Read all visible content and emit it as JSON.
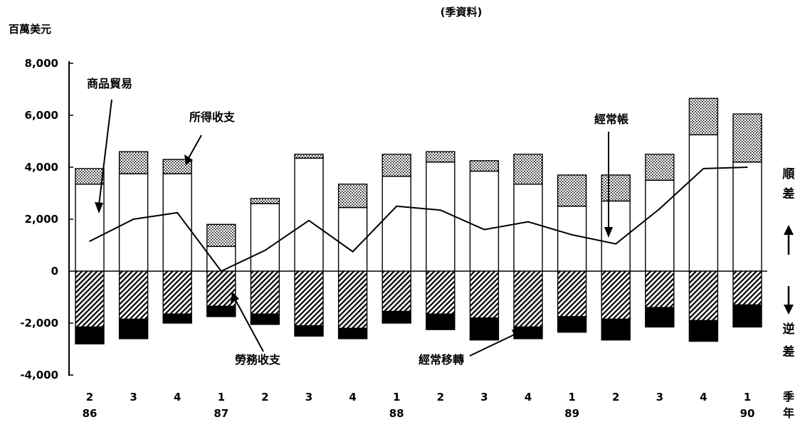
{
  "chart_data": {
    "type": "bar",
    "title": "(季資料)",
    "unit_label": "百萬美元",
    "y_ticks": [
      "8,000",
      "6,000",
      "4,000",
      "2,000",
      "0",
      "-2,000",
      "-4,000"
    ],
    "ylim": [
      -4000,
      8000
    ],
    "categories": [
      "2",
      "3",
      "4",
      "1",
      "2",
      "3",
      "4",
      "1",
      "2",
      "3",
      "4",
      "1",
      "2",
      "3",
      "4",
      "1"
    ],
    "year_labels": [
      {
        "index": 0,
        "label": "86"
      },
      {
        "index": 3,
        "label": "87"
      },
      {
        "index": 7,
        "label": "88"
      },
      {
        "index": 11,
        "label": "89"
      },
      {
        "index": 15,
        "label": "90"
      }
    ],
    "axis_right_label_top": "季",
    "axis_right_label_bottom": "年",
    "side_label_positive": "順差",
    "side_label_negative": "逆差",
    "series": [
      {
        "name": "商品貿易",
        "values": [
          3350,
          3750,
          3750,
          950,
          2600,
          4350,
          2450,
          3650,
          4200,
          3850,
          3350,
          2500,
          2700,
          3500,
          5250,
          4200
        ]
      },
      {
        "name": "所得收支",
        "values": [
          600,
          850,
          550,
          850,
          200,
          150,
          900,
          850,
          400,
          400,
          1150,
          1200,
          1000,
          1000,
          1400,
          1850
        ]
      },
      {
        "name": "勞務收支",
        "values": [
          -2150,
          -1850,
          -1650,
          -1350,
          -1650,
          -2100,
          -2200,
          -1550,
          -1650,
          -1800,
          -2150,
          -1750,
          -1850,
          -1400,
          -1900,
          -1300
        ]
      },
      {
        "name": "經常移轉",
        "values": [
          -650,
          -750,
          -350,
          -400,
          -400,
          -400,
          -400,
          -450,
          -600,
          -850,
          -450,
          -600,
          -800,
          -750,
          -800,
          -850
        ]
      },
      {
        "name": "經常帳",
        "values": [
          1150,
          2000,
          2250,
          0,
          800,
          1950,
          750,
          2500,
          2350,
          1600,
          1900,
          1400,
          1050,
          2400,
          3950,
          4000
        ]
      }
    ],
    "annotations": [
      "商品貿易",
      "所得收支",
      "經常帳",
      "勞務收支",
      "經常移轉"
    ]
  }
}
